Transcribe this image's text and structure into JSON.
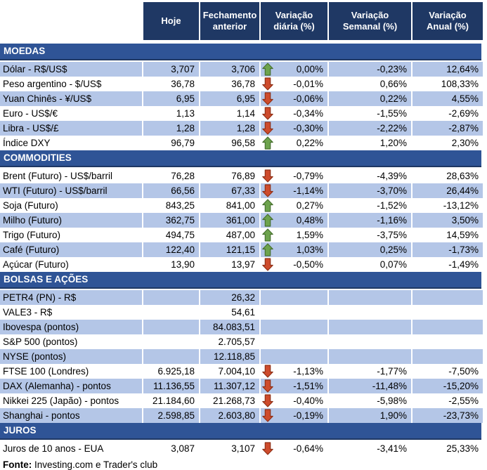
{
  "table": {
    "columns": [
      "Hoje",
      "Fechamento anterior",
      "Variação diária (%)",
      "Variação Semanal (%)",
      "Variação Anual (%)"
    ],
    "sections": [
      {
        "title": "MOEDAS",
        "zebra_offset": 0,
        "rows": [
          {
            "label": "Dólar - R$/US$",
            "hoje": "3,707",
            "fechamento": "3,706",
            "arrow": "up",
            "diaria": "0,00%",
            "semanal": "-0,23%",
            "anual": "12,64%"
          },
          {
            "label": "Peso argentino - $/US$",
            "hoje": "36,78",
            "fechamento": "36,78",
            "arrow": "down",
            "diaria": "-0,01%",
            "semanal": "0,66%",
            "anual": "108,33%"
          },
          {
            "label": "Yuan Chinês - ¥/US$",
            "hoje": "6,95",
            "fechamento": "6,95",
            "arrow": "down",
            "diaria": "-0,06%",
            "semanal": "0,22%",
            "anual": "4,55%"
          },
          {
            "label": "Euro - US$/€",
            "hoje": "1,13",
            "fechamento": "1,14",
            "arrow": "down",
            "diaria": "-0,34%",
            "semanal": "-1,55%",
            "anual": "-2,69%"
          },
          {
            "label": "Libra - US$/£",
            "hoje": "1,28",
            "fechamento": "1,28",
            "arrow": "down",
            "diaria": "-0,30%",
            "semanal": "-2,22%",
            "anual": "-2,87%"
          },
          {
            "label": "Índice DXY",
            "hoje": "96,79",
            "fechamento": "96,58",
            "arrow": "up",
            "diaria": "0,22%",
            "semanal": "1,20%",
            "anual": "2,30%"
          }
        ]
      },
      {
        "title": "COMMODITIES",
        "zebra_offset": 1,
        "rows": [
          {
            "label": "Brent (Futuro) - US$/barril",
            "hoje": "76,28",
            "fechamento": "76,89",
            "arrow": "down",
            "diaria": "-0,79%",
            "semanal": "-4,39%",
            "anual": "28,63%"
          },
          {
            "label": "WTI (Futuro) - US$/barril",
            "hoje": "66,56",
            "fechamento": "67,33",
            "arrow": "down",
            "diaria": "-1,14%",
            "semanal": "-3,70%",
            "anual": "26,44%"
          },
          {
            "label": "Soja (Futuro)",
            "hoje": "843,25",
            "fechamento": "841,00",
            "arrow": "up",
            "diaria": "0,27%",
            "semanal": "-1,52%",
            "anual": "-13,12%"
          },
          {
            "label": "Milho (Futuro)",
            "hoje": "362,75",
            "fechamento": "361,00",
            "arrow": "up",
            "diaria": "0,48%",
            "semanal": "-1,16%",
            "anual": "3,50%"
          },
          {
            "label": "Trigo (Futuro)",
            "hoje": "494,75",
            "fechamento": "487,00",
            "arrow": "up",
            "diaria": "1,59%",
            "semanal": "-3,75%",
            "anual": "14,59%"
          },
          {
            "label": "Café (Futuro)",
            "hoje": "122,40",
            "fechamento": "121,15",
            "arrow": "up",
            "diaria": "1,03%",
            "semanal": "0,25%",
            "anual": "-1,73%"
          },
          {
            "label": "Açúcar (Futuro)",
            "hoje": "13,90",
            "fechamento": "13,97",
            "arrow": "down",
            "diaria": "-0,50%",
            "semanal": "0,07%",
            "anual": "-1,49%"
          }
        ]
      },
      {
        "title": "BOLSAS E AÇÕES",
        "zebra_offset": 0,
        "rows": [
          {
            "label": "PETR4 (PN) - R$",
            "hoje": "",
            "fechamento": "26,32",
            "arrow": null,
            "diaria": "",
            "semanal": "",
            "anual": ""
          },
          {
            "label": "VALE3 - R$",
            "hoje": "",
            "fechamento": "54,61",
            "arrow": null,
            "diaria": "",
            "semanal": "",
            "anual": ""
          },
          {
            "label": "Ibovespa (pontos)",
            "hoje": "",
            "fechamento": "84.083,51",
            "arrow": null,
            "diaria": "",
            "semanal": "",
            "anual": ""
          },
          {
            "label": "S&P 500 (pontos)",
            "hoje": "",
            "fechamento": "2.705,57",
            "arrow": null,
            "diaria": "",
            "semanal": "",
            "anual": ""
          },
          {
            "label": "NYSE (pontos)",
            "hoje": "",
            "fechamento": "12.118,85",
            "arrow": null,
            "diaria": "",
            "semanal": "",
            "anual": ""
          },
          {
            "label": "FTSE 100 (Londres)",
            "hoje": "6.925,18",
            "fechamento": "7.004,10",
            "arrow": "down",
            "diaria": "-1,13%",
            "semanal": "-1,77%",
            "anual": "-7,50%"
          },
          {
            "label": "DAX (Alemanha) - pontos",
            "hoje": "11.136,55",
            "fechamento": "11.307,12",
            "arrow": "down",
            "diaria": "-1,51%",
            "semanal": "-11,48%",
            "anual": "-15,20%"
          },
          {
            "label": "Nikkei 225 (Japão) - pontos",
            "hoje": "21.184,60",
            "fechamento": "21.268,73",
            "arrow": "down",
            "diaria": "-0,40%",
            "semanal": "-5,98%",
            "anual": "-2,55%"
          },
          {
            "label": "Shanghai - pontos",
            "hoje": "2.598,85",
            "fechamento": "2.603,80",
            "arrow": "down",
            "diaria": "-0,19%",
            "semanal": "1,90%",
            "anual": "-23,73%"
          }
        ]
      },
      {
        "title": "JUROS",
        "zebra_offset": 1,
        "rows": [
          {
            "label": "Juros de 10 anos - EUA",
            "hoje": "3,087",
            "fechamento": "3,107",
            "arrow": "down",
            "diaria": "-0,64%",
            "semanal": "-3,41%",
            "anual": "25,33%"
          }
        ]
      }
    ]
  },
  "footer": {
    "bold": "Fonte:",
    "text": " Investing.com e Trader's club"
  },
  "colors": {
    "header_bg": "#1F3864",
    "section_bg": "#2F5496",
    "stripe": "#B4C6E7",
    "arrow_up_fill": "#6DA34D",
    "arrow_up_border": "#47702F",
    "arrow_down_fill": "#CE4B2C",
    "arrow_down_border": "#8F3016"
  }
}
